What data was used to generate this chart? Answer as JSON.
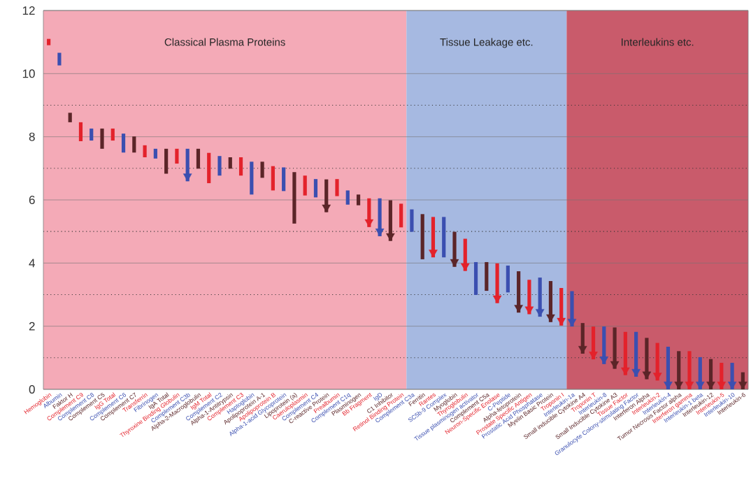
{
  "chart_data": {
    "type": "bar",
    "categories": [
      "Hemoglobin",
      "Albumin",
      "Faktor H",
      "Complement C9",
      "Complement C8",
      "Complement C5",
      "IgG Total",
      "Complement C6",
      "Complement C7",
      "Transferrin",
      "Fibrinogen",
      "IgA Total",
      "Thyroxine Binding Globulin",
      "Complement C3b",
      "Alpha-2-Macroglobulin",
      "IgM Total",
      "Complement C2",
      "Alpha-1-Antitrypsin",
      "Complement C3",
      "Haptoglobin",
      "Apolipoprotein A-1",
      "Apolipoprotein B",
      "Alpha-1-acid Glycoprotein",
      "Lipoprotein (a)",
      "Caeruloplasmin",
      "Complement C4",
      "C-reactive Protein",
      "Prealbumin",
      "Complement C1q",
      "Plasminogen",
      "Bb Fragment",
      "IgD",
      "C1 Inhibitor",
      "Retinol Binding Protein",
      "Complement C3a",
      "Ferritin",
      "Rantes",
      "SC5b-9 Complex",
      "Myoglobin",
      "Thyroglobulin",
      "Tissue plasminogen activator",
      "Complement C5a",
      "Neuron-Specific Enolase",
      "C-Peptide",
      "Alpha-fetoprotein",
      "Prostate Specific Antigen",
      "Prostatic Acid Phosphatase",
      "Myelin Basic Protein",
      "Troponin I",
      "Interleukin-1a",
      "Small inducible Cytokine A4",
      "Troponin T",
      "Interleukin-8",
      "Small Inducible Cytokine A3",
      "Tissue Factor",
      "Granulocyte Colony-stimulating Factor",
      "Interferon Alpha",
      "Interleukin-2",
      "Interleukin-4",
      "Tumor Necrosis Factor alpha",
      "Interferon gamma",
      "Interleukin-1 beta",
      "Interleukin-12",
      "Interleukin-5",
      "Interleukin-10",
      "Interleukin-6"
    ],
    "ylim": [
      0,
      12
    ],
    "yticks": [
      0,
      {
        "value": 1,
        "label": null
      },
      2,
      {
        "value": 3,
        "label": null
      },
      4,
      {
        "value": 5,
        "label": null
      },
      6,
      {
        "value": 7,
        "label": null
      },
      8,
      {
        "value": 9,
        "label": null
      },
      10,
      12
    ],
    "grid": "y",
    "bands": [
      {
        "axis": "x",
        "from": "Hemoglobin",
        "to": "Retinol Binding Protein",
        "label": "Classical Plasma Proteins",
        "color": "#f4aab7"
      },
      {
        "axis": "x",
        "from": "Complement C3a",
        "to": "Troponin I",
        "label": "Tissue Leakage etc.",
        "color": "#a6b9e1"
      },
      {
        "axis": "x",
        "from": "Interleukin-1a",
        "to": "Interleukin-6",
        "label": "Interleukins etc.",
        "color": "#c95b6b"
      }
    ],
    "series": [
      {
        "base": [
          10.9,
          10.26,
          8.46,
          7.86,
          7.88,
          7.62,
          7.88,
          7.5,
          7.5,
          7.35,
          7.31,
          6.83,
          7.15,
          6.59,
          6.99,
          6.53,
          6.77,
          6.99,
          6.77,
          6.17,
          6.7,
          6.3,
          6.28,
          5.25,
          6.14,
          6.08,
          5.61,
          6.12,
          5.85,
          5.83,
          5.14,
          4.85,
          4.7,
          5.13,
          4.99,
          4.12,
          4.18,
          4.18,
          3.88,
          3.75,
          2.99,
          3.12,
          2.73,
          3.07,
          2.43,
          2.38,
          2.3,
          2.13,
          2.02,
          1.99,
          1.13,
          0.95,
          0.8,
          0.65,
          0.45,
          0.4,
          0.32,
          0.28,
          0,
          0,
          0,
          0,
          0,
          0,
          0,
          0
        ],
        "values": [
          0.2,
          0.4,
          0.3,
          0.6,
          0.38,
          0.64,
          0.38,
          0.6,
          0.51,
          0.38,
          0.31,
          0.79,
          0.47,
          1.03,
          0.63,
          0.96,
          0.62,
          0.36,
          0.58,
          1.04,
          0.51,
          0.77,
          0.75,
          1.63,
          0.63,
          0.58,
          1.04,
          0.54,
          0.45,
          0.34,
          0.91,
          1.2,
          1.29,
          0.75,
          0.71,
          1.43,
          1.28,
          1.28,
          1.11,
          1.02,
          1.04,
          0.91,
          1.26,
          0.85,
          1.31,
          1.09,
          1.24,
          1.3,
          1.19,
          1.12,
          0.97,
          1.04,
          1.19,
          1.31,
          1.37,
          1.42,
          1.31,
          1.19,
          1.35,
          1.21,
          1.21,
          1.02,
          0.96,
          0.84,
          0.84,
          0.54
        ],
        "colors": [
          "#e3222b",
          "#3b4fb0",
          "#5b2528",
          "#e3222b",
          "#3b4fb0",
          "#5b2528",
          "#e3222b",
          "#3b4fb0",
          "#5b2528",
          "#e3222b",
          "#3b4fb0",
          "#5b2528",
          "#e3222b",
          "#3b4fb0",
          "#5b2528",
          "#e3222b",
          "#3b4fb0",
          "#5b2528",
          "#e3222b",
          "#3b4fb0",
          "#5b2528",
          "#e3222b",
          "#3b4fb0",
          "#5b2528",
          "#e3222b",
          "#3b4fb0",
          "#5b2528",
          "#e3222b",
          "#3b4fb0",
          "#5b2528",
          "#e3222b",
          "#3b4fb0",
          "#5b2528",
          "#e3222b",
          "#3b4fb0",
          "#5b2528",
          "#e3222b",
          "#3b4fb0",
          "#5b2528",
          "#e3222b",
          "#3b4fb0",
          "#5b2528",
          "#e3222b",
          "#3b4fb0",
          "#5b2528",
          "#e3222b",
          "#3b4fb0",
          "#5b2528",
          "#e3222b",
          "#3b4fb0",
          "#5b2528",
          "#e3222b",
          "#3b4fb0",
          "#5b2528",
          "#e3222b",
          "#3b4fb0",
          "#5b2528",
          "#e3222b",
          "#3b4fb0",
          "#5b2528",
          "#e3222b",
          "#3b4fb0",
          "#5b2528",
          "#e3222b",
          "#3b4fb0",
          "#5b2528"
        ]
      },
      {
        "type": "scatter",
        "marker": "triangle",
        "x": [
          "Complement C3b",
          "C-reactive Protein",
          "Bb Fragment",
          "IgD",
          "C1 Inhibitor",
          "Rantes",
          "Myoglobin",
          "Thyroglobulin",
          "Neuron-Specific Enolase",
          "Alpha-fetoprotein",
          "Prostate Specific Antigen",
          "Prostatic Acid Phosphatase",
          "Myelin Basic Protein",
          "Troponin I",
          "Interleukin-1a",
          "Small inducible Cytokine A4",
          "Troponin T",
          "Interleukin-8",
          "Small Inducible Cytokine A3",
          "Tissue Factor",
          "Granulocyte Colony-stimulating Factor",
          "Interferon Alpha",
          "Interleukin-2",
          "Interleukin-4",
          "Tumor Necrosis Factor alpha",
          "Interferon gamma",
          "Interleukin-1 beta",
          "Interleukin-12",
          "Interleukin-5",
          "Interleukin-10",
          "Interleukin-6"
        ],
        "values": [
          6.75,
          5.77,
          5.3,
          5.01,
          4.86,
          4.34,
          4.04,
          3.91,
          2.89,
          2.59,
          2.54,
          2.46,
          2.29,
          2.18,
          2.15,
          1.29,
          1.11,
          0.96,
          0.81,
          0.61,
          0.56,
          0.48,
          0.44,
          0.16,
          0.16,
          0.16,
          0.16,
          0.16,
          0.16,
          0.16,
          0.16
        ],
        "colors": [
          "#3b4fb0",
          "#5b2528",
          "#e3222b",
          "#3b4fb0",
          "#5b2528",
          "#e3222b",
          "#5b2528",
          "#e3222b",
          "#e3222b",
          "#5b2528",
          "#e3222b",
          "#3b4fb0",
          "#5b2528",
          "#e3222b",
          "#3b4fb0",
          "#5b2528",
          "#e3222b",
          "#3b4fb0",
          "#5b2528",
          "#e3222b",
          "#3b4fb0",
          "#5b2528",
          "#e3222b",
          "#3b4fb0",
          "#5b2528",
          "#e3222b",
          "#3b4fb0",
          "#5b2528",
          "#e3222b",
          "#3b4fb0",
          "#5b2528"
        ]
      }
    ]
  }
}
